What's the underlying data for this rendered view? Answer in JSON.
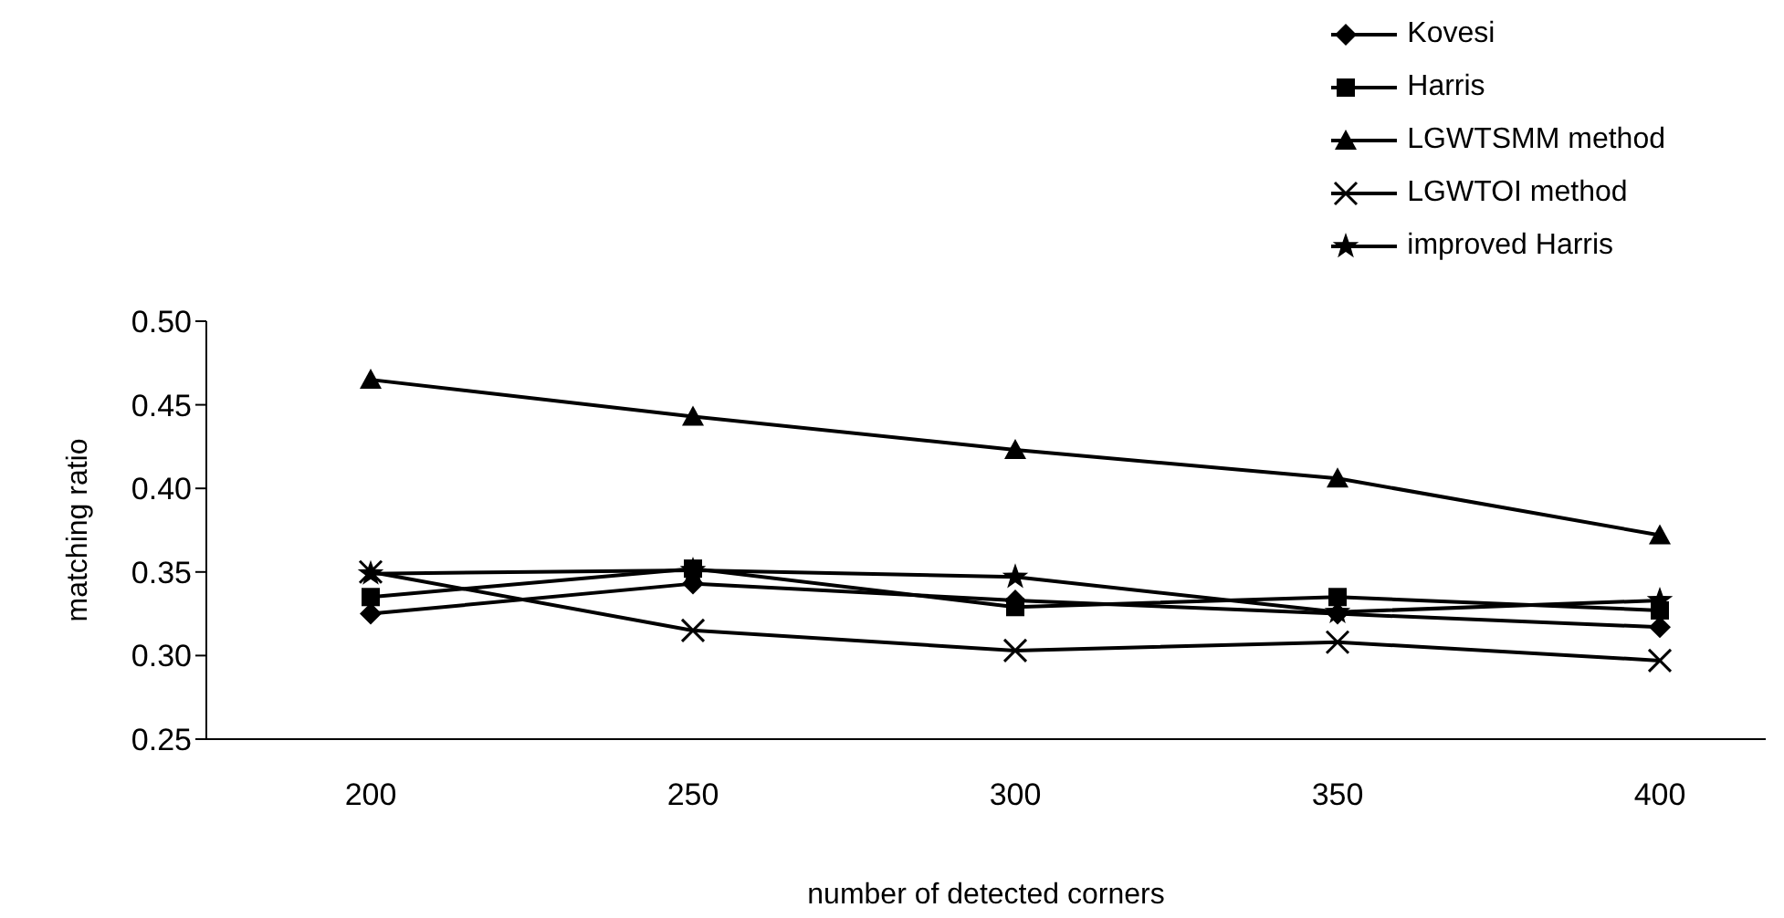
{
  "chart_data": {
    "type": "line",
    "xlabel": "number of detected corners",
    "ylabel": "matching ratio",
    "categories": [
      "200",
      "250",
      "300",
      "350",
      "400"
    ],
    "ylim": [
      0.25,
      0.5
    ],
    "yticks": [
      {
        "value": 0.25,
        "label": "0.25"
      },
      {
        "value": 0.3,
        "label": "0.30"
      },
      {
        "value": 0.35,
        "label": "0.35"
      },
      {
        "value": 0.4,
        "label": "0.40"
      },
      {
        "value": 0.45,
        "label": "0.45"
      },
      {
        "value": 0.5,
        "label": "0.50"
      }
    ],
    "grid": false,
    "legend": "top right",
    "line_style": "solid",
    "series": [
      {
        "name": "Kovesi",
        "color": "#000000",
        "marker": "diamond",
        "values": [
          0.325,
          0.343,
          0.333,
          0.325,
          0.317
        ]
      },
      {
        "name": "Harris",
        "color": "#000000",
        "marker": "square",
        "values": [
          0.335,
          0.352,
          0.329,
          0.335,
          0.327
        ]
      },
      {
        "name": "LGWTSMM method",
        "color": "#000000",
        "marker": "triangle",
        "values": [
          0.465,
          0.443,
          0.423,
          0.406,
          0.372
        ]
      },
      {
        "name": "LGWTOI method",
        "color": "#000000",
        "marker": "cross",
        "values": [
          0.35,
          0.315,
          0.303,
          0.308,
          0.297
        ]
      },
      {
        "name": "improved Harris",
        "color": "#000000",
        "marker": "star",
        "values": [
          0.349,
          0.351,
          0.347,
          0.326,
          0.333
        ]
      }
    ]
  }
}
